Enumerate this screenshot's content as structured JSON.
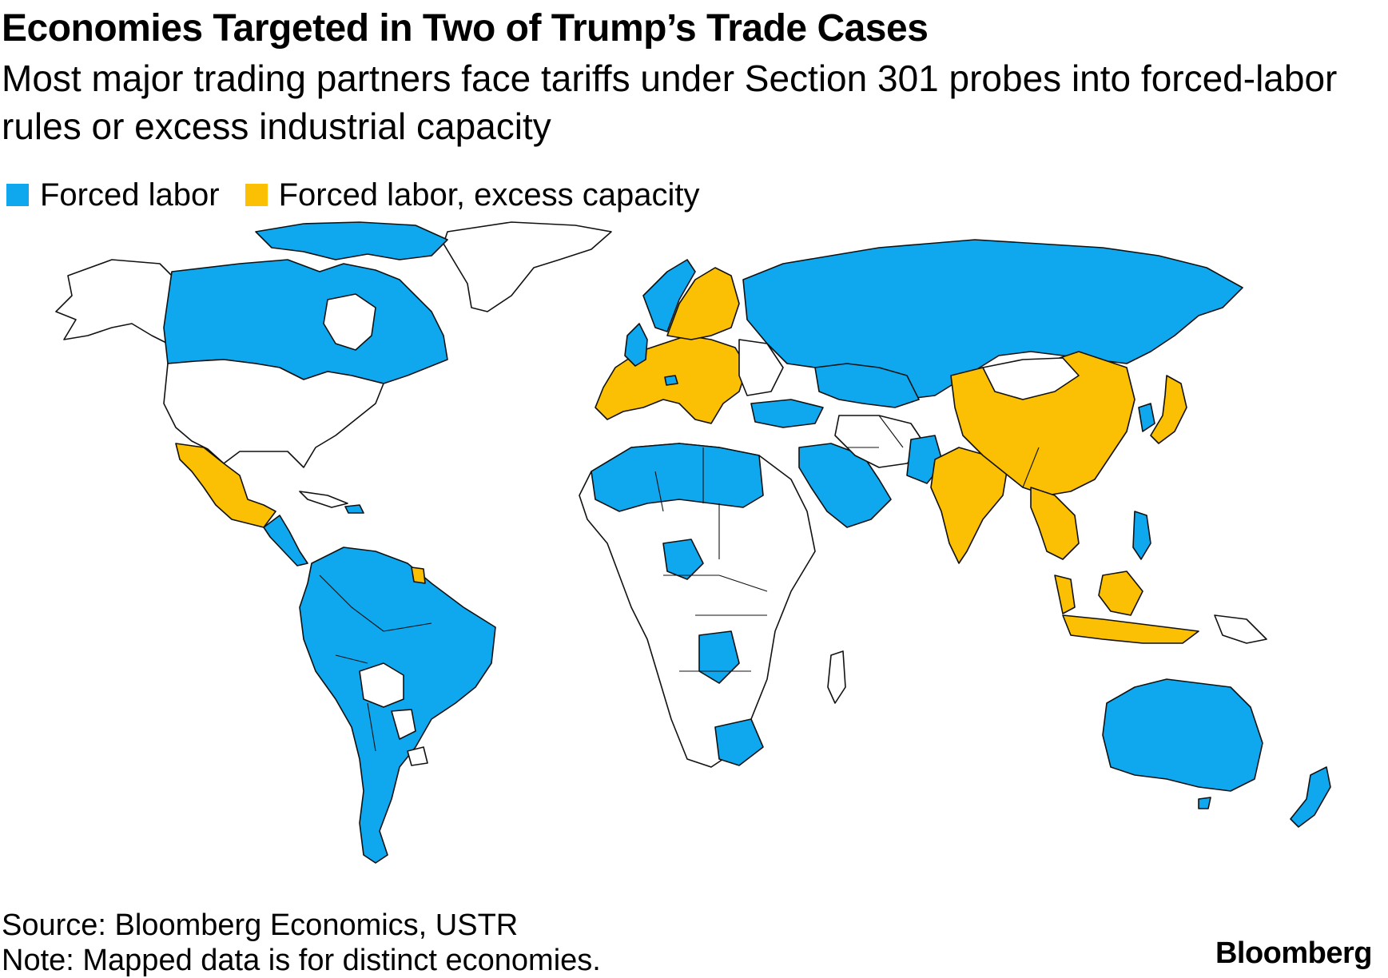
{
  "header": {
    "title": "Economies Targeted in Two of Trump’s Trade Cases",
    "subtitle": "Most major trading partners face tariffs under Section 301 probes into forced-labor rules or excess industrial capacity"
  },
  "legend": [
    {
      "label": "Forced labor",
      "color": "#0fa8ee"
    },
    {
      "label": "Forced labor, excess capacity",
      "color": "#fbbf03"
    }
  ],
  "colors": {
    "forced_labor": "#0fa8ee",
    "forced_labor_excess_capacity": "#fbbf03",
    "not_targeted": "#ffffff",
    "border": "#111111"
  },
  "footer": {
    "source": "Source: Bloomberg Economics, USTR",
    "note": "Note: Mapped data is for distinct economies."
  },
  "brand": "Bloomberg"
}
